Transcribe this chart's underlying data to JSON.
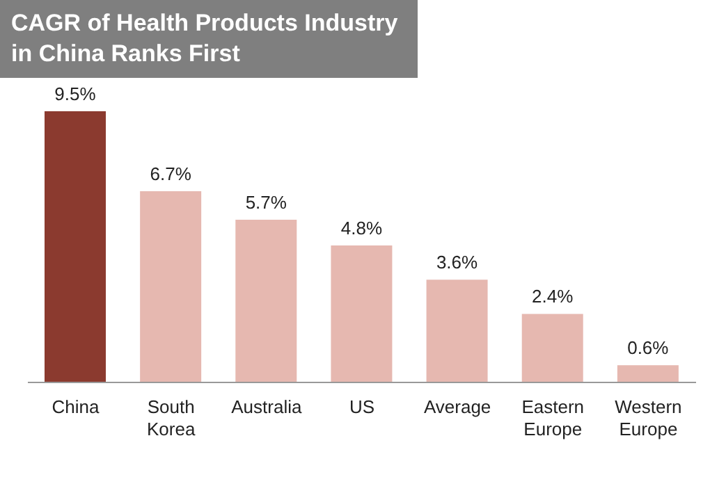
{
  "chart_data": {
    "type": "bar",
    "title": "CAGR of Health Products Industry in China Ranks First",
    "categories": [
      "China",
      "South Korea",
      "Australia",
      "US",
      "Average",
      "Eastern Europe",
      "Western Europe"
    ],
    "values": [
      9.5,
      6.7,
      5.7,
      4.8,
      3.6,
      2.4,
      0.6
    ],
    "value_labels": [
      "9.5%",
      "6.7%",
      "5.7%",
      "4.8%",
      "3.6%",
      "2.4%",
      "0.6%"
    ],
    "colors": [
      "#8b3a2f",
      "#e6b8b0",
      "#e6b8b0",
      "#e6b8b0",
      "#e6b8b0",
      "#e6b8b0",
      "#e6b8b0"
    ],
    "grid": false,
    "legend": false
  }
}
